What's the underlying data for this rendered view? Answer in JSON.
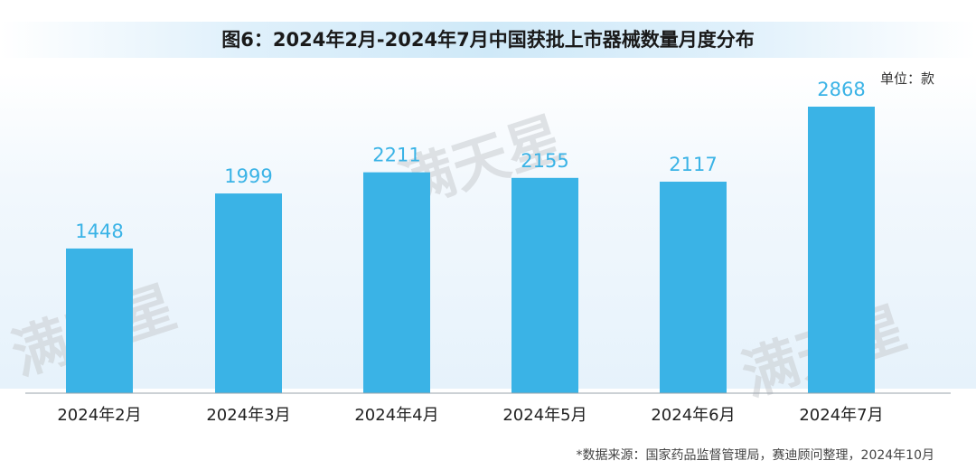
{
  "chart_data": {
    "type": "bar",
    "title": "图6：2024年2月-2024年7月中国获批上市器械数量月度分布",
    "unit_label": "单位：款",
    "categories": [
      "2024年2月",
      "2024年3月",
      "2024年4月",
      "2024年5月",
      "2024年6月",
      "2024年7月"
    ],
    "values": [
      1448,
      1999,
      2211,
      2155,
      2117,
      2868
    ],
    "ylim": [
      0,
      3100
    ],
    "grid": false,
    "bar_color": "#3ab3e6",
    "label_color": "#3ab3e6",
    "source": "*数据来源：国家药品监督管理局，赛迪顾问整理，2024年10月"
  },
  "watermark": {
    "text": "满天星",
    "color": "#c8ccd0"
  }
}
